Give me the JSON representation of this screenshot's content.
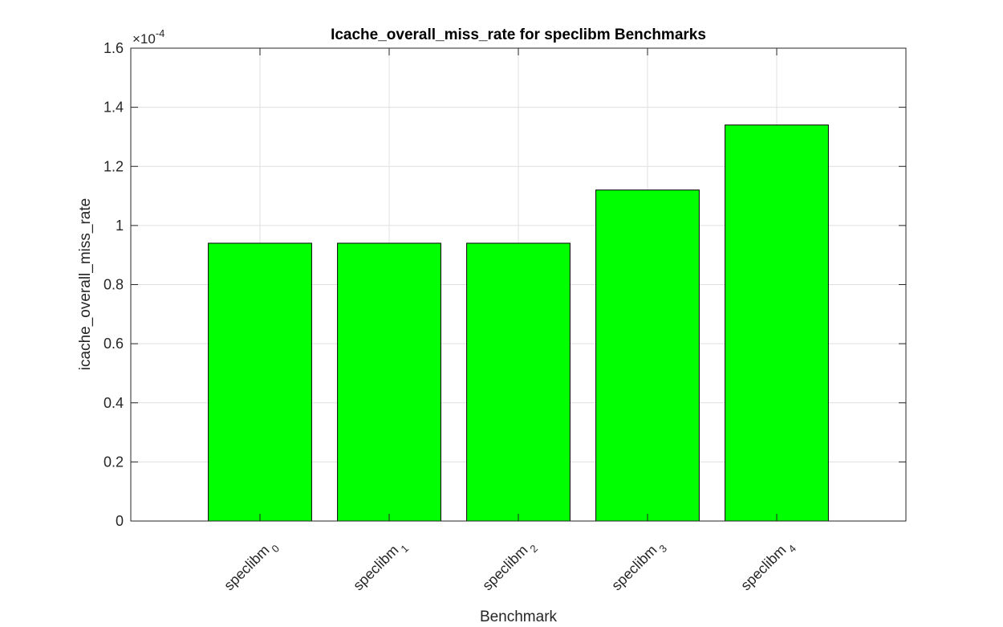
{
  "chart_data": {
    "type": "bar",
    "title": "Icache_overall_miss_rate for speclibm Benchmarks",
    "xlabel": "Benchmark",
    "ylabel": "icache_overall_miss_rate",
    "exponent_label": "×10",
    "exponent_power": "-4",
    "categories": [
      {
        "base": "speclibm",
        "sub": "0"
      },
      {
        "base": "speclibm",
        "sub": "1"
      },
      {
        "base": "speclibm",
        "sub": "2"
      },
      {
        "base": "speclibm",
        "sub": "3"
      },
      {
        "base": "speclibm",
        "sub": "4"
      }
    ],
    "values": [
      0.94,
      0.94,
      0.94,
      1.12,
      1.34
    ],
    "value_scale": 0.0001,
    "ylim": [
      0,
      1.6
    ],
    "yticks": [
      "0",
      "0.2",
      "0.4",
      "0.6",
      "0.8",
      "1",
      "1.2",
      "1.4",
      "1.6"
    ],
    "grid": true,
    "bar_color": "#00ff00",
    "bar_edge_color": "#000000"
  }
}
